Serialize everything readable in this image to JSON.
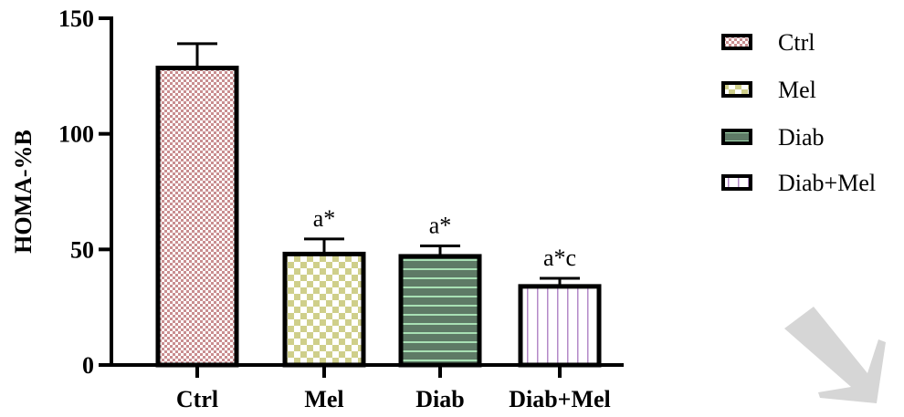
{
  "chart_data": {
    "type": "bar",
    "title": "",
    "xlabel": "",
    "ylabel": "HOMA-%B",
    "ylim": [
      0,
      150
    ],
    "yticks": [
      0,
      50,
      100,
      150
    ],
    "categories": [
      "Ctrl",
      "Mel",
      "Diab",
      "Diab+Mel"
    ],
    "values": [
      128.5,
      48,
      47,
      34
    ],
    "errors": [
      10.5,
      6.5,
      4.5,
      3.5
    ],
    "annotations": [
      "",
      "a*",
      "a*",
      "a*c"
    ],
    "legend": {
      "position": "right",
      "entries": [
        "Ctrl",
        "Mel",
        "Diab",
        "Diab+Mel"
      ]
    },
    "grid": false,
    "series_styles": [
      {
        "pattern": "checker-fine",
        "color": "#c98e90",
        "bg": "#ffffff"
      },
      {
        "pattern": "checker-coarse",
        "color": "#cfcf8a",
        "bg": "#ffffff"
      },
      {
        "pattern": "horizontal-lines",
        "color": "#a8e0b4",
        "bg": "#5e7a66"
      },
      {
        "pattern": "vertical-lines",
        "color": "#b48ac8",
        "bg": "#ffffff"
      }
    ]
  }
}
